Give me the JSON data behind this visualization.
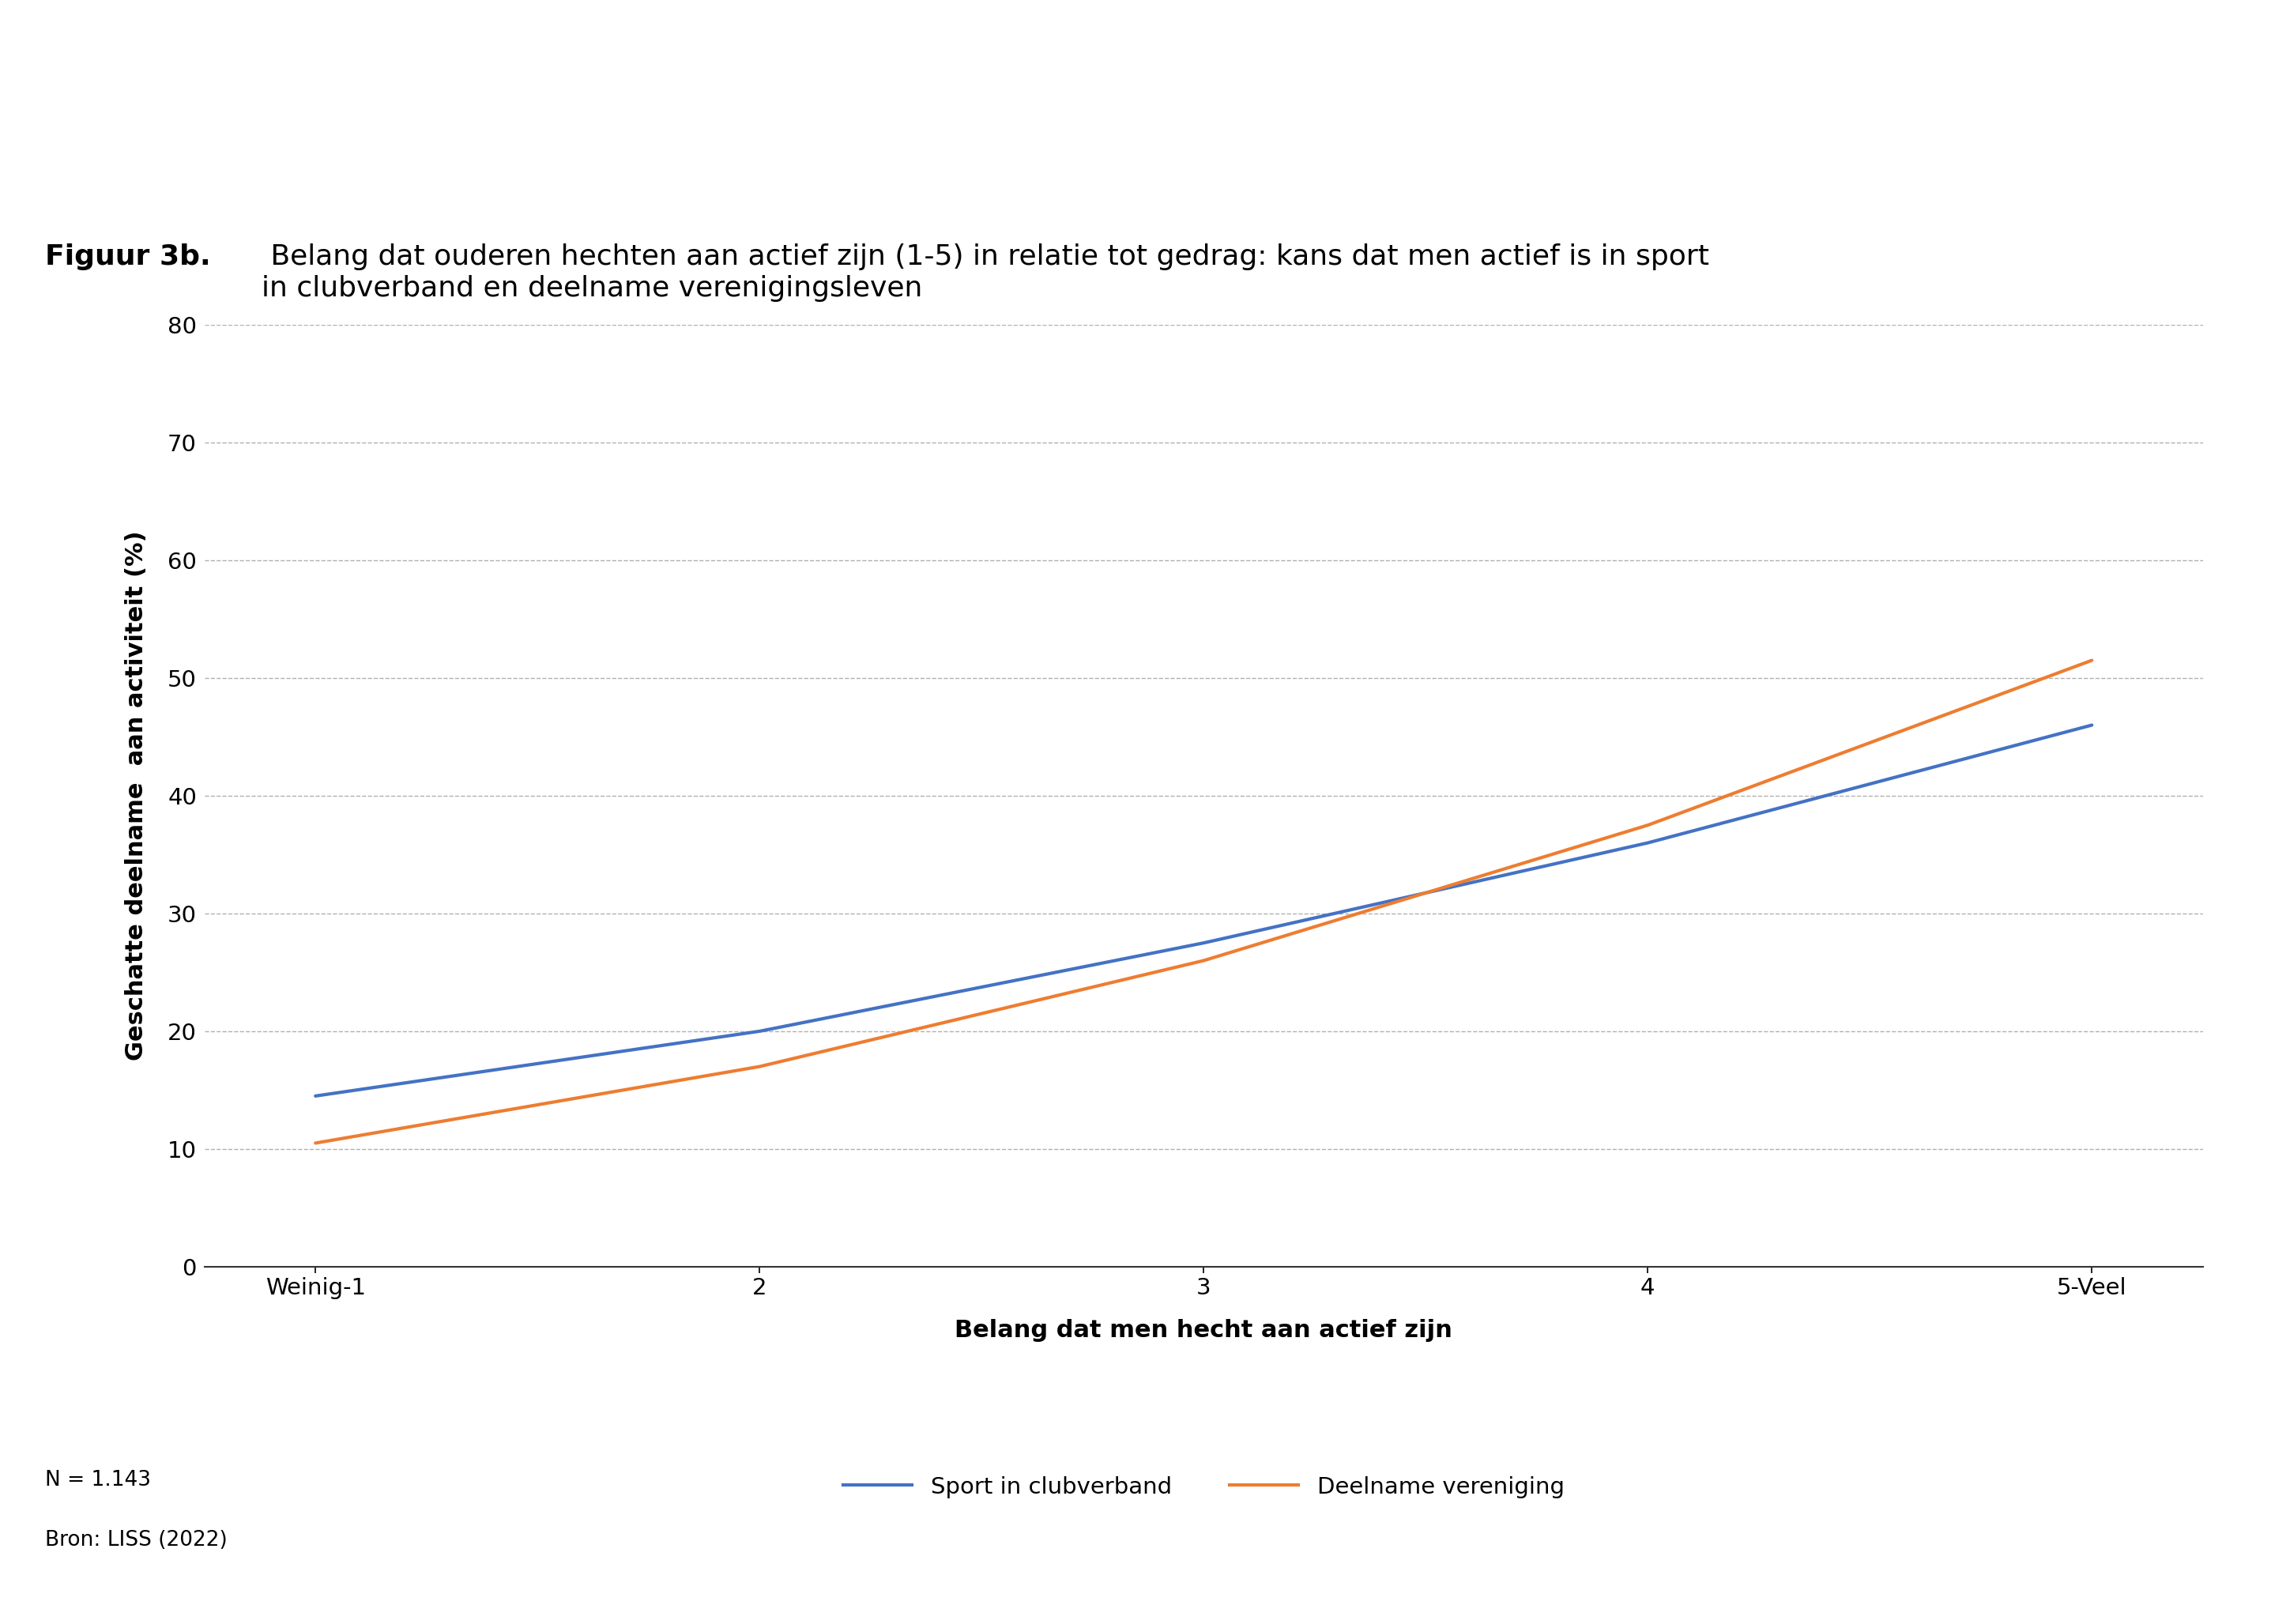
{
  "title_bold": "Figuur 3b.",
  "title_normal": " Belang dat ouderen hechten aan actief zijn (1-5) in relatie tot gedrag: kans dat men actief is in sport\nin clubverband en deelname verenigingsleven",
  "xlabel": "Belang dat men hecht aan actief zijn",
  "ylabel": "Geschatte deelname  aan activiteit (%)",
  "x_ticks": [
    1,
    2,
    3,
    4,
    5
  ],
  "x_tick_labels": [
    "Weinig-1",
    "2",
    "3",
    "4",
    "5-Veel"
  ],
  "ylim": [
    0,
    80
  ],
  "y_ticks": [
    0,
    10,
    20,
    30,
    40,
    50,
    60,
    70,
    80
  ],
  "sport_clubverband_x": [
    1,
    2,
    3,
    4,
    5
  ],
  "sport_clubverband_y": [
    14.5,
    20.0,
    27.5,
    36.0,
    46.0
  ],
  "deelname_vereniging_x": [
    1,
    2,
    3,
    4,
    5
  ],
  "deelname_vereniging_y": [
    10.5,
    17.0,
    26.0,
    37.5,
    51.5
  ],
  "color_sport": "#4472C4",
  "color_deelname": "#ED7D31",
  "legend_sport": "Sport in clubverband",
  "legend_deelname": "Deelname vereniging",
  "note_n": "N = 1.143",
  "note_source": "Bron: LISS (2022)",
  "background_color": "#ffffff",
  "grid_color": "#b0b0b0",
  "line_width": 3.0,
  "title_fontsize": 26,
  "axis_label_fontsize": 22,
  "tick_fontsize": 21,
  "legend_fontsize": 21,
  "note_fontsize": 19
}
